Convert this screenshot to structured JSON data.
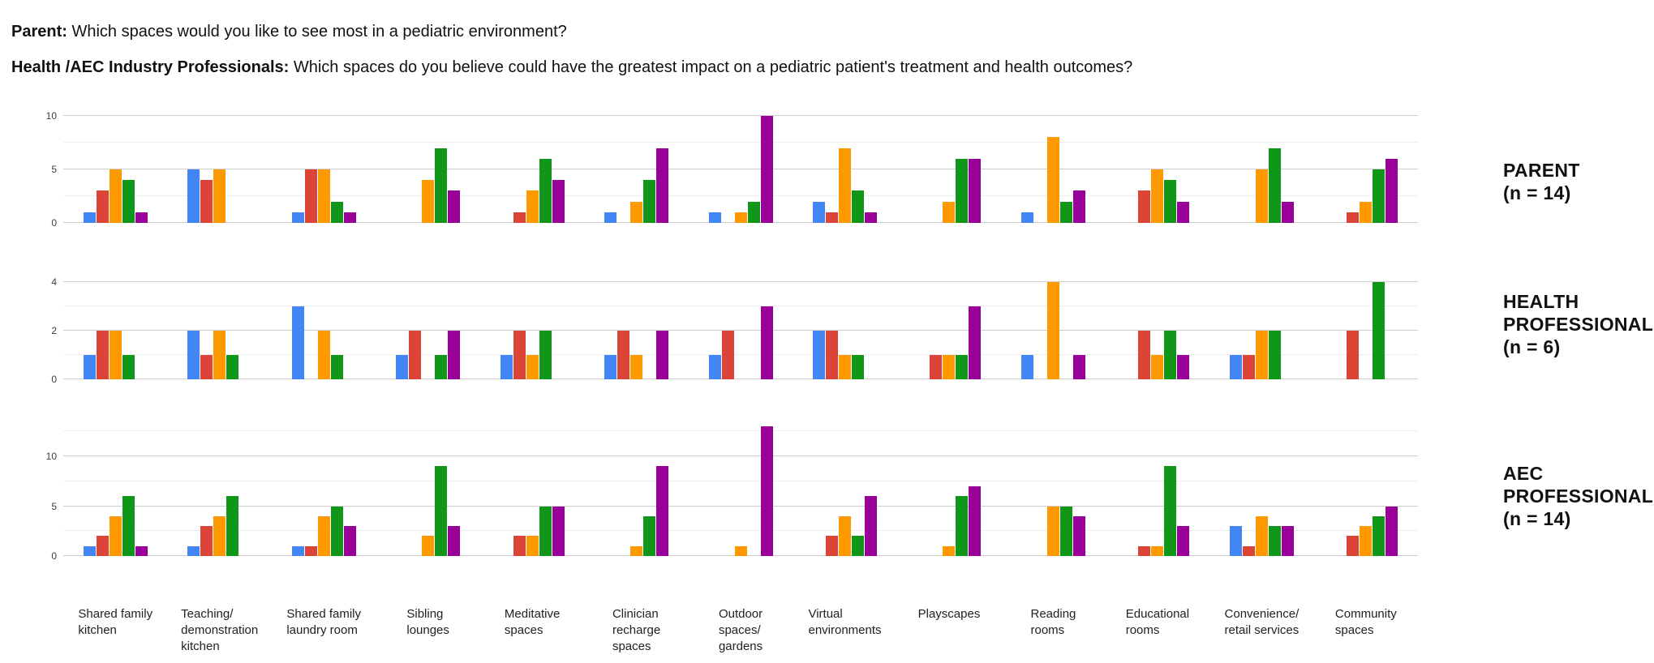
{
  "header": {
    "line1_label": "Parent:",
    "line1_text": " Which spaces would you like to see most in a pediatric environment?",
    "line2_label": "Health /AEC Industry Professionals:",
    "line2_text": " Which spaces do you believe could have the greatest impact on a pediatric patient's treatment and health outcomes?"
  },
  "palette": {
    "blue": "#4285F4",
    "red": "#DB4437",
    "orange": "#FF9900",
    "green": "#109618",
    "purple": "#990099"
  },
  "category_axis": {
    "labels": [
      [
        "Shared family",
        "kitchen"
      ],
      [
        "Teaching/",
        "demonstration",
        "kitchen"
      ],
      [
        "Shared family",
        "laundry room"
      ],
      [
        "Sibling",
        "lounges"
      ],
      [
        "Meditative",
        "spaces"
      ],
      [
        "Clinician",
        "recharge",
        "spaces"
      ],
      [
        "Outdoor",
        "spaces/",
        "gardens"
      ],
      [
        "Virtual",
        "environments"
      ],
      [
        "Playscapes"
      ],
      [
        "Reading",
        "rooms"
      ],
      [
        "Educational",
        "rooms"
      ],
      [
        "Convenience/",
        "retail services"
      ],
      [
        "Community",
        "spaces"
      ]
    ]
  },
  "chart_data": [
    {
      "type": "bar",
      "id": "parent",
      "title": "PARENT (n = 14)",
      "title_lines": [
        "PARENT",
        "(n = 14)"
      ],
      "categories": [
        "Shared family kitchen",
        "Teaching/demonstration kitchen",
        "Shared family laundry room",
        "Sibling lounges",
        "Meditative spaces",
        "Clinician recharge spaces",
        "Outdoor spaces/gardens",
        "Virtual environments",
        "Playscapes",
        "Reading rooms",
        "Educational rooms",
        "Convenience/retail services",
        "Community spaces"
      ],
      "series": [
        {
          "name": "blue",
          "color": "#4285F4",
          "values": [
            1,
            5,
            1,
            0,
            0,
            1,
            1,
            2,
            0,
            1,
            0,
            0,
            0
          ]
        },
        {
          "name": "red",
          "color": "#DB4437",
          "values": [
            3,
            4,
            5,
            0,
            1,
            0,
            0,
            1,
            0,
            0,
            3,
            0,
            1
          ]
        },
        {
          "name": "orange",
          "color": "#FF9900",
          "values": [
            5,
            5,
            5,
            4,
            3,
            2,
            1,
            7,
            2,
            8,
            5,
            5,
            2
          ]
        },
        {
          "name": "green",
          "color": "#109618",
          "values": [
            4,
            0,
            2,
            7,
            6,
            4,
            2,
            3,
            6,
            2,
            4,
            7,
            5
          ]
        },
        {
          "name": "purple",
          "color": "#990099",
          "values": [
            1,
            0,
            1,
            3,
            4,
            7,
            10,
            1,
            6,
            3,
            2,
            2,
            6
          ]
        }
      ],
      "ylim": [
        0,
        10
      ],
      "yticks": [
        0,
        5,
        10
      ],
      "grid": [
        0,
        2.5,
        5,
        7.5,
        10
      ],
      "legend": "none",
      "xlabel": "",
      "ylabel": ""
    },
    {
      "type": "bar",
      "id": "health-professional",
      "title": "HEALTH PROFESSIONAL (n = 6)",
      "title_lines": [
        "HEALTH",
        "PROFESSIONAL",
        "(n = 6)"
      ],
      "categories": [
        "Shared family kitchen",
        "Teaching/demonstration kitchen",
        "Shared family laundry room",
        "Sibling lounges",
        "Meditative spaces",
        "Clinician recharge spaces",
        "Outdoor spaces/gardens",
        "Virtual environments",
        "Playscapes",
        "Reading rooms",
        "Educational rooms",
        "Convenience/retail services",
        "Community spaces"
      ],
      "series": [
        {
          "name": "blue",
          "color": "#4285F4",
          "values": [
            1,
            2,
            3,
            1,
            1,
            1,
            1,
            2,
            0,
            1,
            0,
            1,
            0
          ]
        },
        {
          "name": "red",
          "color": "#DB4437",
          "values": [
            2,
            1,
            0,
            2,
            2,
            2,
            2,
            2,
            1,
            0,
            2,
            1,
            2
          ]
        },
        {
          "name": "orange",
          "color": "#FF9900",
          "values": [
            2,
            2,
            2,
            0,
            1,
            1,
            0,
            1,
            1,
            4,
            1,
            2,
            0
          ]
        },
        {
          "name": "green",
          "color": "#109618",
          "values": [
            1,
            1,
            1,
            1,
            2,
            0,
            0,
            1,
            1,
            0,
            2,
            2,
            4
          ]
        },
        {
          "name": "purple",
          "color": "#990099",
          "values": [
            0,
            0,
            0,
            2,
            0,
            2,
            3,
            0,
            3,
            1,
            1,
            0,
            0
          ]
        }
      ],
      "ylim": [
        0,
        4
      ],
      "yticks": [
        0,
        2,
        4
      ],
      "grid": [
        0,
        1,
        2,
        3,
        4
      ],
      "legend": "none",
      "xlabel": "",
      "ylabel": ""
    },
    {
      "type": "bar",
      "id": "aec-professional",
      "title": "AEC PROFESSIONAL (n = 14)",
      "title_lines": [
        "AEC",
        "PROFESSIONAL",
        "(n = 14)"
      ],
      "categories": [
        "Shared family kitchen",
        "Teaching/demonstration kitchen",
        "Shared family laundry room",
        "Sibling lounges",
        "Meditative spaces",
        "Clinician recharge spaces",
        "Outdoor spaces/gardens",
        "Virtual environments",
        "Playscapes",
        "Reading rooms",
        "Educational rooms",
        "Convenience/retail services",
        "Community spaces"
      ],
      "series": [
        {
          "name": "blue",
          "color": "#4285F4",
          "values": [
            1,
            1,
            1,
            0,
            0,
            0,
            0,
            0,
            0,
            0,
            0,
            3,
            0
          ]
        },
        {
          "name": "red",
          "color": "#DB4437",
          "values": [
            2,
            3,
            1,
            0,
            2,
            0,
            0,
            2,
            0,
            0,
            1,
            1,
            2
          ]
        },
        {
          "name": "orange",
          "color": "#FF9900",
          "values": [
            4,
            4,
            4,
            2,
            2,
            1,
            1,
            4,
            1,
            5,
            1,
            4,
            3
          ]
        },
        {
          "name": "green",
          "color": "#109618",
          "values": [
            6,
            6,
            5,
            9,
            5,
            4,
            0,
            2,
            6,
            5,
            9,
            3,
            4
          ]
        },
        {
          "name": "purple",
          "color": "#990099",
          "values": [
            1,
            0,
            3,
            3,
            5,
            9,
            13,
            6,
            7,
            4,
            3,
            3,
            5
          ]
        }
      ],
      "ylim": [
        0,
        13
      ],
      "yticks": [
        0,
        5,
        10
      ],
      "grid": [
        0,
        2.5,
        5,
        7.5,
        10,
        12.5
      ],
      "legend": "none",
      "xlabel": "",
      "ylabel": ""
    }
  ]
}
